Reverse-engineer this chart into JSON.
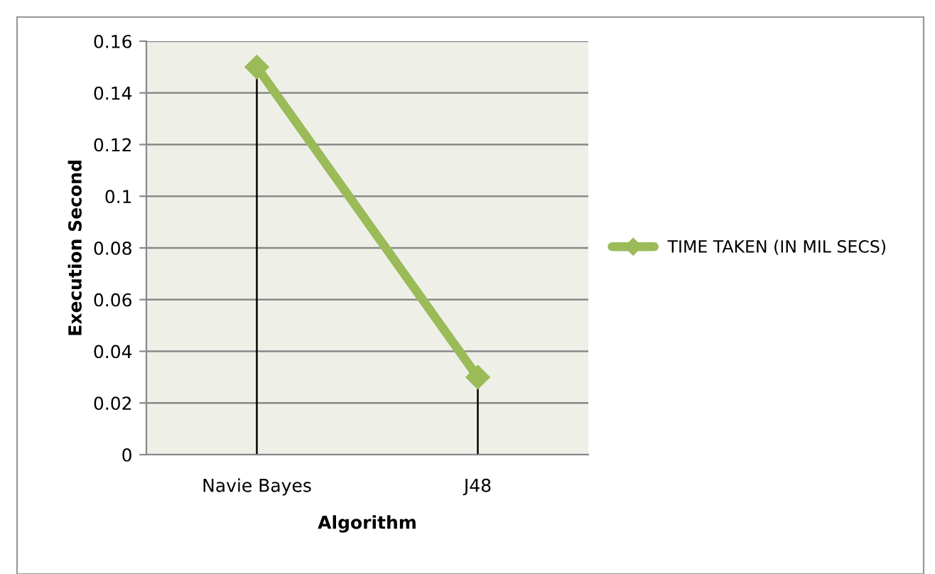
{
  "chart_data": {
    "type": "line",
    "xlabel": "Algorithm",
    "ylabel": "Execution Second",
    "categories": [
      "Navie Bayes",
      "J48"
    ],
    "series": [
      {
        "name": "TIME TAKEN (IN MIL SECS)",
        "color": "#9bbb59",
        "values": [
          0.15,
          0.03
        ],
        "errors": [
          [
            0,
            0.15
          ],
          [
            0,
            0.03
          ]
        ]
      }
    ],
    "ylim": [
      0,
      0.16
    ],
    "yticks": [
      0,
      0.02,
      0.04,
      0.06,
      0.08,
      0.1,
      0.12,
      0.14,
      0.16
    ],
    "grid": "y",
    "legend": "right",
    "marker": "diamond",
    "line_style": "solid"
  }
}
